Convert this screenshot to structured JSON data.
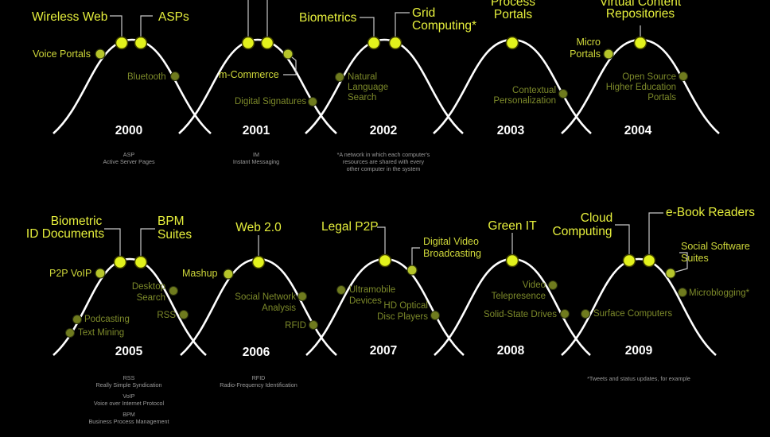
{
  "panels": [
    {
      "year": "2000",
      "labels": {
        "wireless": "Wireless Web",
        "asps": "ASPs",
        "voice": "Voice Portals",
        "bluetooth": "Bluetooth"
      },
      "notes": [
        "ASP",
        "Active Server Pages"
      ]
    },
    {
      "year": "2001",
      "labels": {
        "mcommerce": "m-Commerce",
        "digsig": "Digital Signatures"
      },
      "notes": [
        "IM",
        "Instant Messaging"
      ]
    },
    {
      "year": "2002",
      "labels": {
        "biometrics": "Biometrics",
        "grid1": "Grid",
        "grid2": "Computing*",
        "nls1": "Natural",
        "nls2": "Language",
        "nls3": "Search"
      },
      "notes": [
        "*A network in which each computer's",
        "resources are shared with every",
        "other computer in the system"
      ]
    },
    {
      "year": "2003",
      "labels": {
        "process": "Process",
        "portals": "Portals",
        "ctx1": "Contextual",
        "ctx2": "Personalization"
      },
      "notes": []
    },
    {
      "year": "2004",
      "labels": {
        "vcr1": "Virtual Content",
        "vcr2": "Repositories",
        "micro1": "Micro",
        "micro2": "Portals",
        "os1": "Open Source",
        "os2": "Higher Education",
        "os3": "Portals"
      },
      "notes": []
    },
    {
      "year": "2005",
      "labels": {
        "bio1": "Biometric",
        "bio2": "ID Documents",
        "bpm1": "BPM",
        "bpm2": "Suites",
        "p2p": "P2P VoIP",
        "ds1": "Desktop",
        "ds2": "Search",
        "rss": "RSS",
        "podcasting": "Podcasting",
        "textmining": "Text Mining"
      },
      "notes": [
        "RSS",
        "Really Simple Syndication",
        "VoIP",
        "Voice over Internet Protocol",
        "BPM",
        "Business Process Management"
      ]
    },
    {
      "year": "2006",
      "labels": {
        "web20": "Web 2.0",
        "mashup": "Mashup",
        "sna1": "Social Network",
        "sna2": "Analysis",
        "rfid": "RFID"
      },
      "notes": [
        "RFID",
        "Radio-Frequency Identification"
      ]
    },
    {
      "year": "2007",
      "labels": {
        "legal": "Legal P2P",
        "dvb1": "Digital Video",
        "dvb2": "Broadcasting",
        "um1": "Ultramobile",
        "um2": "Devices",
        "hd1": "HD Optical",
        "hd2": "Disc Players"
      },
      "notes": []
    },
    {
      "year": "2008",
      "labels": {
        "green": "Green IT",
        "vt1": "Video",
        "vt2": "Telepresence",
        "ssd": "Solid-State Drives"
      },
      "notes": []
    },
    {
      "year": "2009",
      "labels": {
        "cloud1": "Cloud",
        "cloud2": "Computing",
        "ebook": "e-Book Readers",
        "sss1": "Social Software",
        "sss2": "Suites",
        "mb": "Microblogging*",
        "sc": "Surface Computers"
      },
      "notes": [
        "*Tweets and status updates, for example"
      ]
    }
  ],
  "colors": {
    "background": "#000000",
    "curve": "#ffffff",
    "highlight": "#e2f21c",
    "mid": "#b6c52a",
    "dim": "#6f7b1e",
    "note": "#9a9a9a"
  }
}
